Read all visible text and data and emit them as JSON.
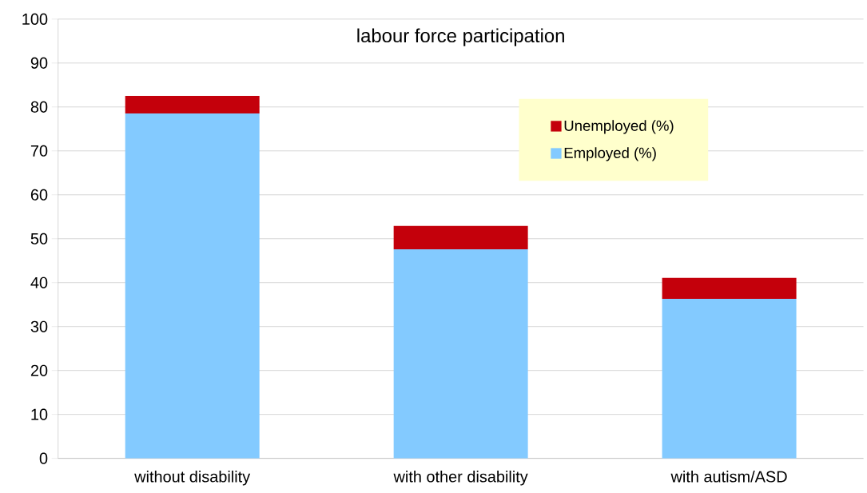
{
  "chart_data": {
    "type": "bar",
    "title": "labour force participation",
    "categories": [
      "without disability",
      "with other disability",
      "with autism/ASD"
    ],
    "series": [
      {
        "name": "Employed (%)",
        "color": "#83caff",
        "values": [
          78.5,
          47.6,
          36.3
        ]
      },
      {
        "name": "Unemployed (%)",
        "color": "#c4000b",
        "values": [
          4.0,
          5.3,
          4.8
        ]
      }
    ],
    "stacked": true,
    "ylim": [
      0,
      100
    ],
    "yticks": [
      0,
      10,
      20,
      30,
      40,
      50,
      60,
      70,
      80,
      90,
      100
    ],
    "grid": "y",
    "legend": "top right"
  }
}
